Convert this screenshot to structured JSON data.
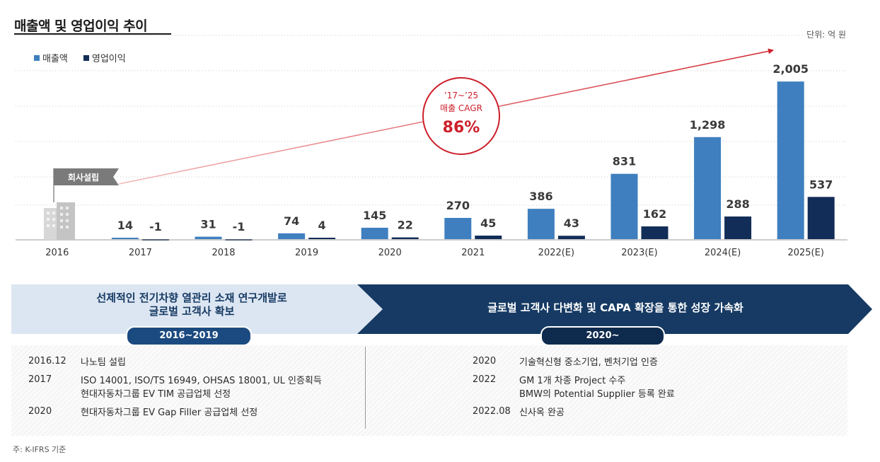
{
  "title": "매출액 및 영업이익 추이",
  "unit": "단위: 억 원",
  "chart_data": {
    "type": "bar",
    "categories": [
      "2016",
      "2017",
      "2018",
      "2019",
      "2020",
      "2021",
      "2022(E)",
      "2023(E)",
      "2024(E)",
      "2025(E)"
    ],
    "series": [
      {
        "name": "매출액",
        "color": "#3f7fbf",
        "values": [
          null,
          14,
          31,
          74,
          145,
          270,
          386,
          831,
          1298,
          2005
        ],
        "labels": [
          "",
          "14",
          "31",
          "74",
          "145",
          "270",
          "386",
          "831",
          "1,298",
          "2,005"
        ]
      },
      {
        "name": "영업이익",
        "color": "#122d57",
        "values": [
          null,
          -1,
          -1,
          4,
          22,
          45,
          43,
          162,
          288,
          537
        ],
        "labels": [
          "",
          "-1",
          "-1",
          "4",
          "22",
          "45",
          "43",
          "162",
          "288",
          "537"
        ]
      }
    ],
    "ylim": [
      0,
      2250
    ],
    "grid": "horizontal dotted",
    "legend": "top-left",
    "annotations": {
      "founding": "회사설립",
      "cagr_period": "’17~’25",
      "cagr_label": "매출 CAGR",
      "cagr_value": "86%"
    }
  },
  "banner": {
    "left_text_line1": "선제적인 전기차향 열관리 소재 연구개발로",
    "left_text_line2": "글로벌 고객사 확보",
    "left_period": "2016~2019",
    "right_text": "글로벌 고객사 다변화 및 CAPA 확장을 통한 성장 가속화",
    "right_period": "2020~"
  },
  "timeline": {
    "left": [
      {
        "year": "2016.12",
        "lines": [
          "나노팀 설립"
        ]
      },
      {
        "year": "2017",
        "lines": [
          "ISO 14001, ISO/TS 16949, OHSAS 18001, UL 인증획득",
          "현대자동차그룹 EV TIM 공급업체 선정"
        ]
      },
      {
        "year": "2020",
        "lines": [
          "현대자동차그룹 EV Gap Filler 공급업체 선정"
        ]
      }
    ],
    "right": [
      {
        "year": "2020",
        "lines": [
          "기술혁신형 중소기업, 벤처기업 인증"
        ]
      },
      {
        "year": "2022",
        "lines": [
          "GM 1개 차종 Project 수주",
          "BMW의 Potential Supplier 등록 완료"
        ]
      },
      {
        "year": "2022.08",
        "lines": [
          "신사옥 완공"
        ]
      }
    ]
  },
  "footnote": "주: K-IFRS 기준"
}
